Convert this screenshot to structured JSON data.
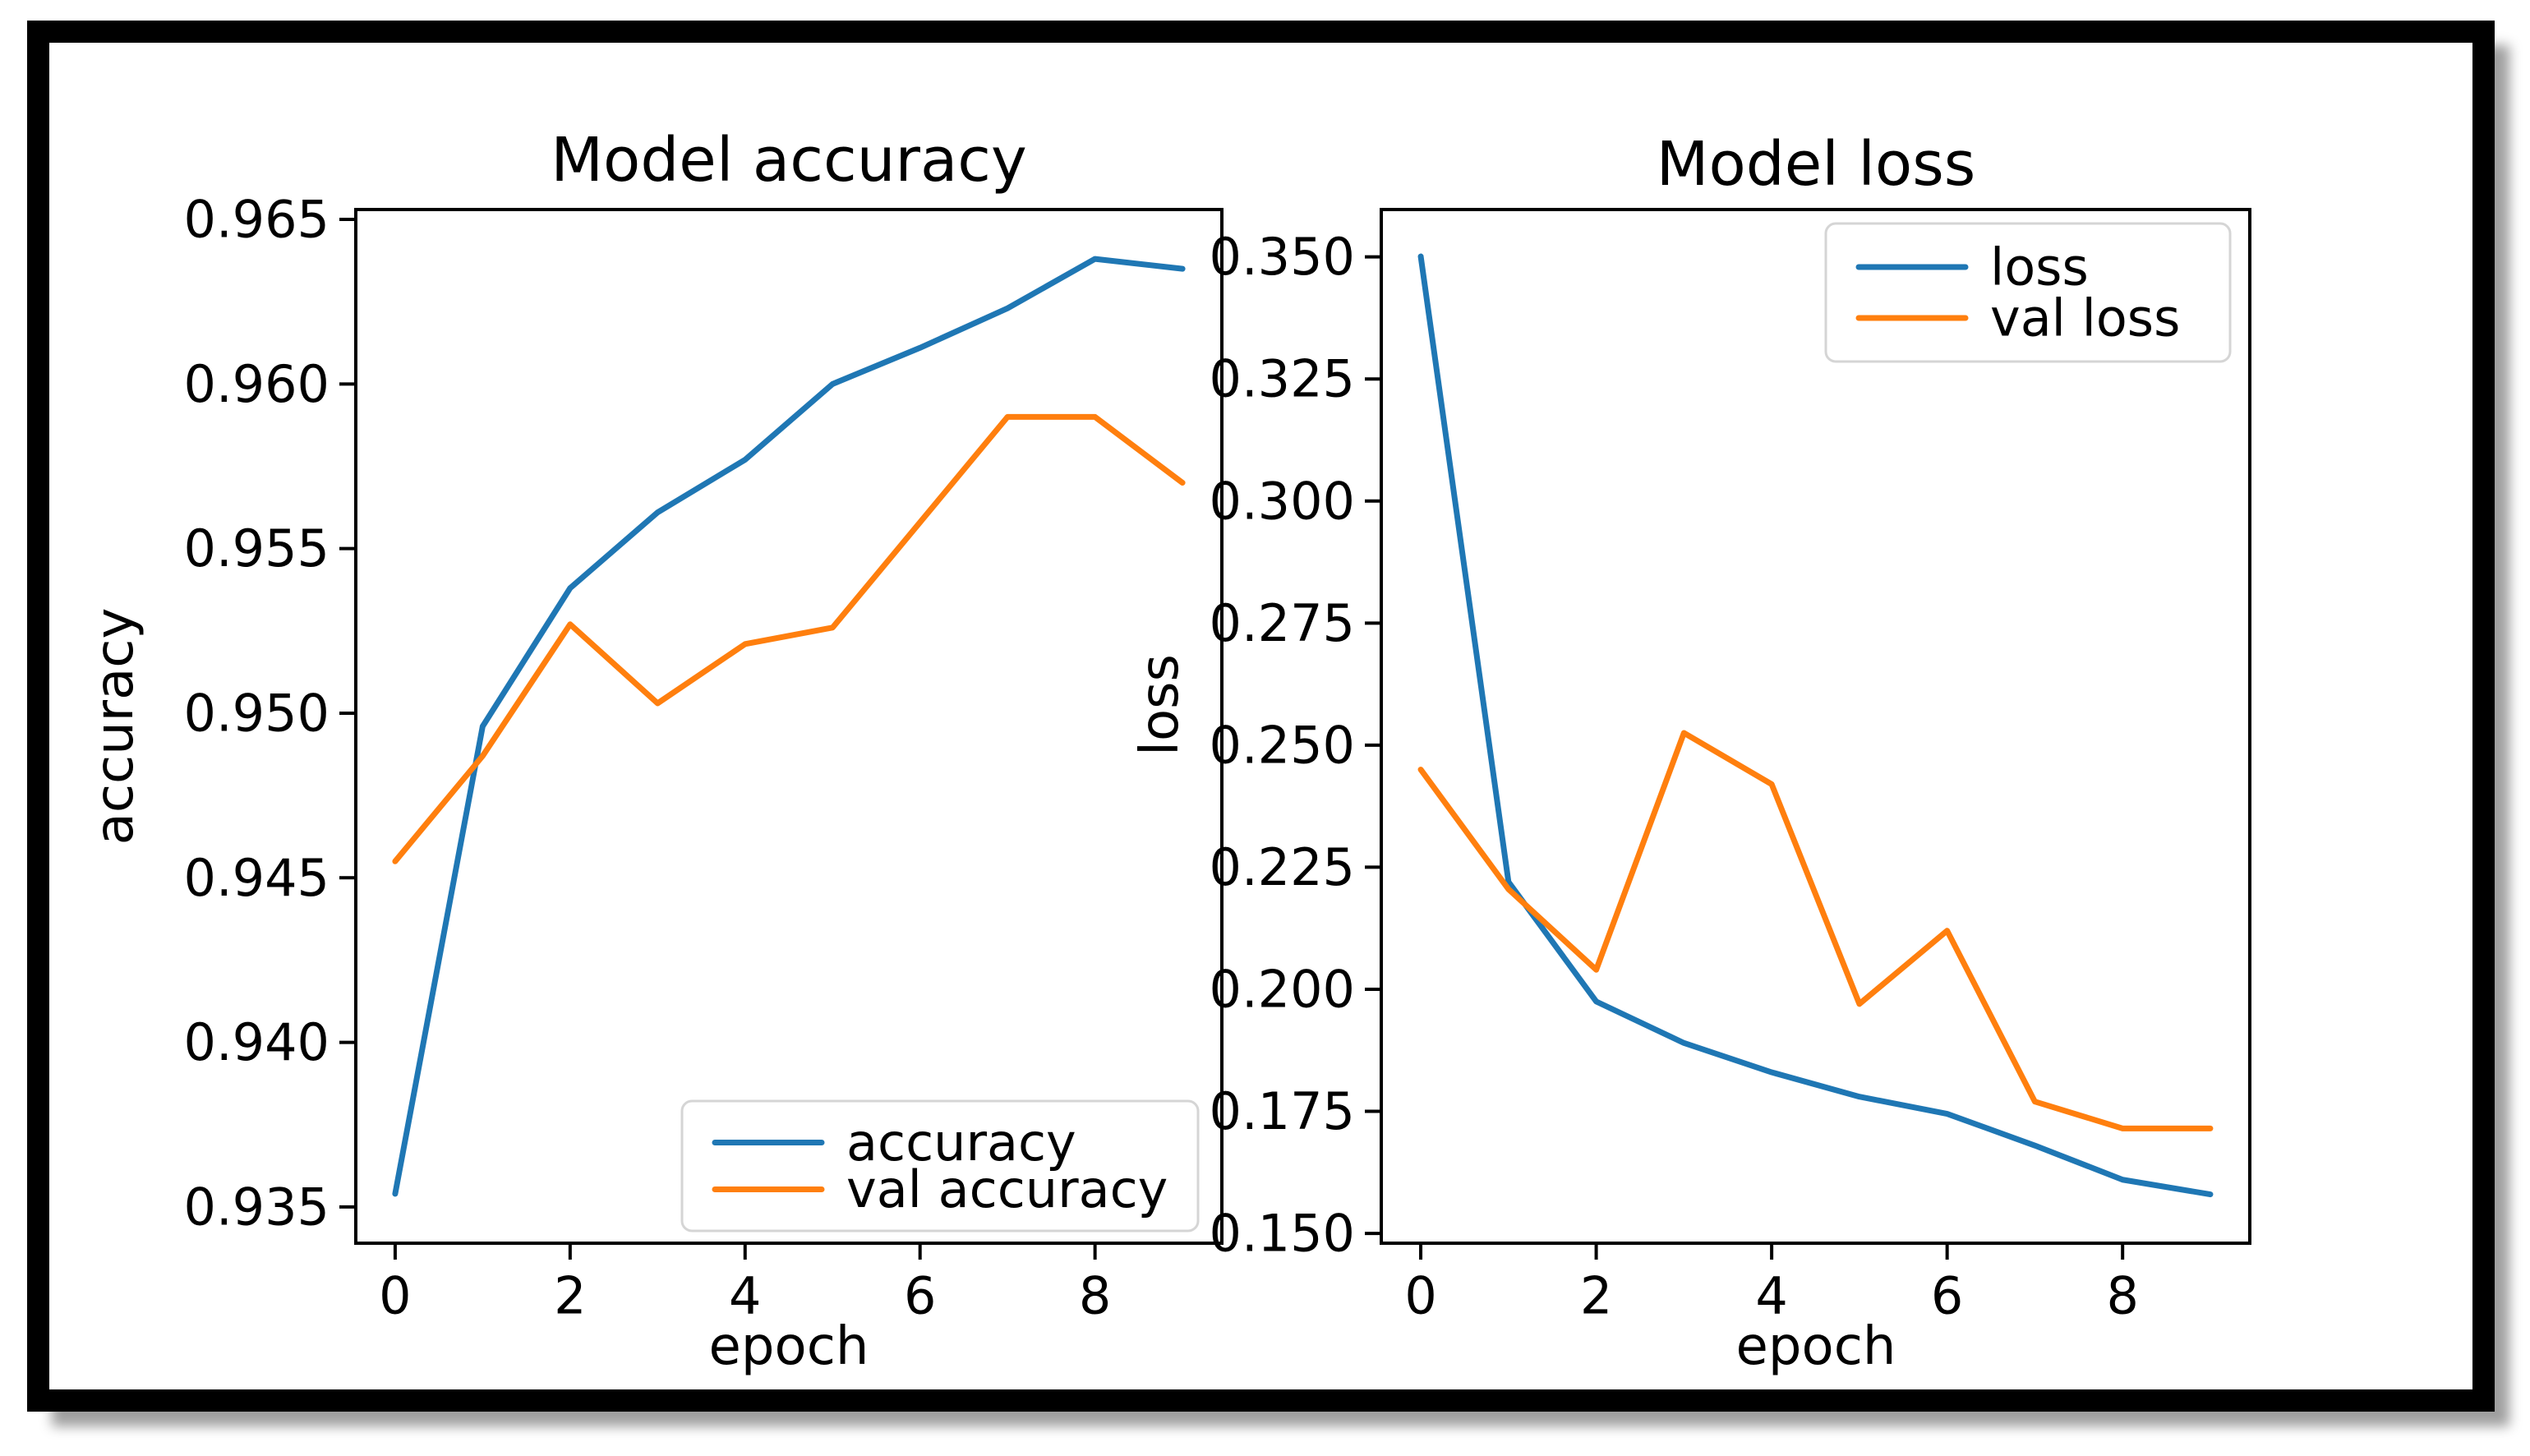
{
  "page": {
    "background": "#ffffff",
    "frame_border_color": "#000000",
    "shadow_color": "#9f9f9f",
    "axis_color": "#000000",
    "legend_border_color": "#d5d5d5",
    "legend_background": "#ffffff"
  },
  "chart_data": [
    {
      "type": "line",
      "title": "Model accuracy",
      "xlabel": "epoch",
      "ylabel": "accuracy",
      "x": [
        0,
        1,
        2,
        3,
        4,
        5,
        6,
        7,
        8,
        9
      ],
      "series": [
        {
          "name": "accuracy",
          "color": "#1f77b4",
          "values": [
            0.9354,
            0.9496,
            0.9538,
            0.9561,
            0.9577,
            0.96,
            0.9611,
            0.9623,
            0.9638,
            0.9635
          ]
        },
        {
          "name": "val accuracy",
          "color": "#ff7f0e",
          "values": [
            0.9455,
            0.9487,
            0.9527,
            0.9503,
            0.9521,
            0.9526,
            0.9558,
            0.959,
            0.959,
            0.957
          ]
        }
      ],
      "xlim": [
        -0.45,
        9.45
      ],
      "ylim": [
        0.9339,
        0.9653
      ],
      "xticks": [
        0,
        2,
        4,
        6,
        8
      ],
      "xtick_labels": [
        "0",
        "2",
        "4",
        "6",
        "8"
      ],
      "yticks": [
        0.935,
        0.94,
        0.945,
        0.95,
        0.955,
        0.96,
        0.965
      ],
      "ytick_labels": [
        "0.935",
        "0.940",
        "0.945",
        "0.950",
        "0.955",
        "0.960",
        "0.965"
      ],
      "legend_position": "lower right",
      "legend_entries": [
        "accuracy",
        "val accuracy"
      ],
      "grid": false
    },
    {
      "type": "line",
      "title": "Model loss",
      "xlabel": "epoch",
      "ylabel": "loss",
      "x": [
        0,
        1,
        2,
        3,
        4,
        5,
        6,
        7,
        8,
        9
      ],
      "series": [
        {
          "name": "loss",
          "color": "#1f77b4",
          "values": [
            0.3501,
            0.222,
            0.1975,
            0.189,
            0.183,
            0.178,
            0.1745,
            0.168,
            0.161,
            0.158
          ]
        },
        {
          "name": "val loss",
          "color": "#ff7f0e",
          "values": [
            0.245,
            0.2205,
            0.204,
            0.2525,
            0.242,
            0.197,
            0.212,
            0.177,
            0.1715,
            0.1715
          ]
        }
      ],
      "xlim": [
        -0.45,
        9.45
      ],
      "ylim": [
        0.148,
        0.3597
      ],
      "xticks": [
        0,
        2,
        4,
        6,
        8
      ],
      "xtick_labels": [
        "0",
        "2",
        "4",
        "6",
        "8"
      ],
      "yticks": [
        0.15,
        0.175,
        0.2,
        0.225,
        0.25,
        0.275,
        0.3,
        0.325,
        0.35
      ],
      "ytick_labels": [
        "0.150",
        "0.175",
        "0.200",
        "0.225",
        "0.250",
        "0.275",
        "0.300",
        "0.325",
        "0.350"
      ],
      "legend_position": "upper right",
      "legend_entries": [
        "loss",
        "val loss"
      ],
      "grid": false
    }
  ]
}
